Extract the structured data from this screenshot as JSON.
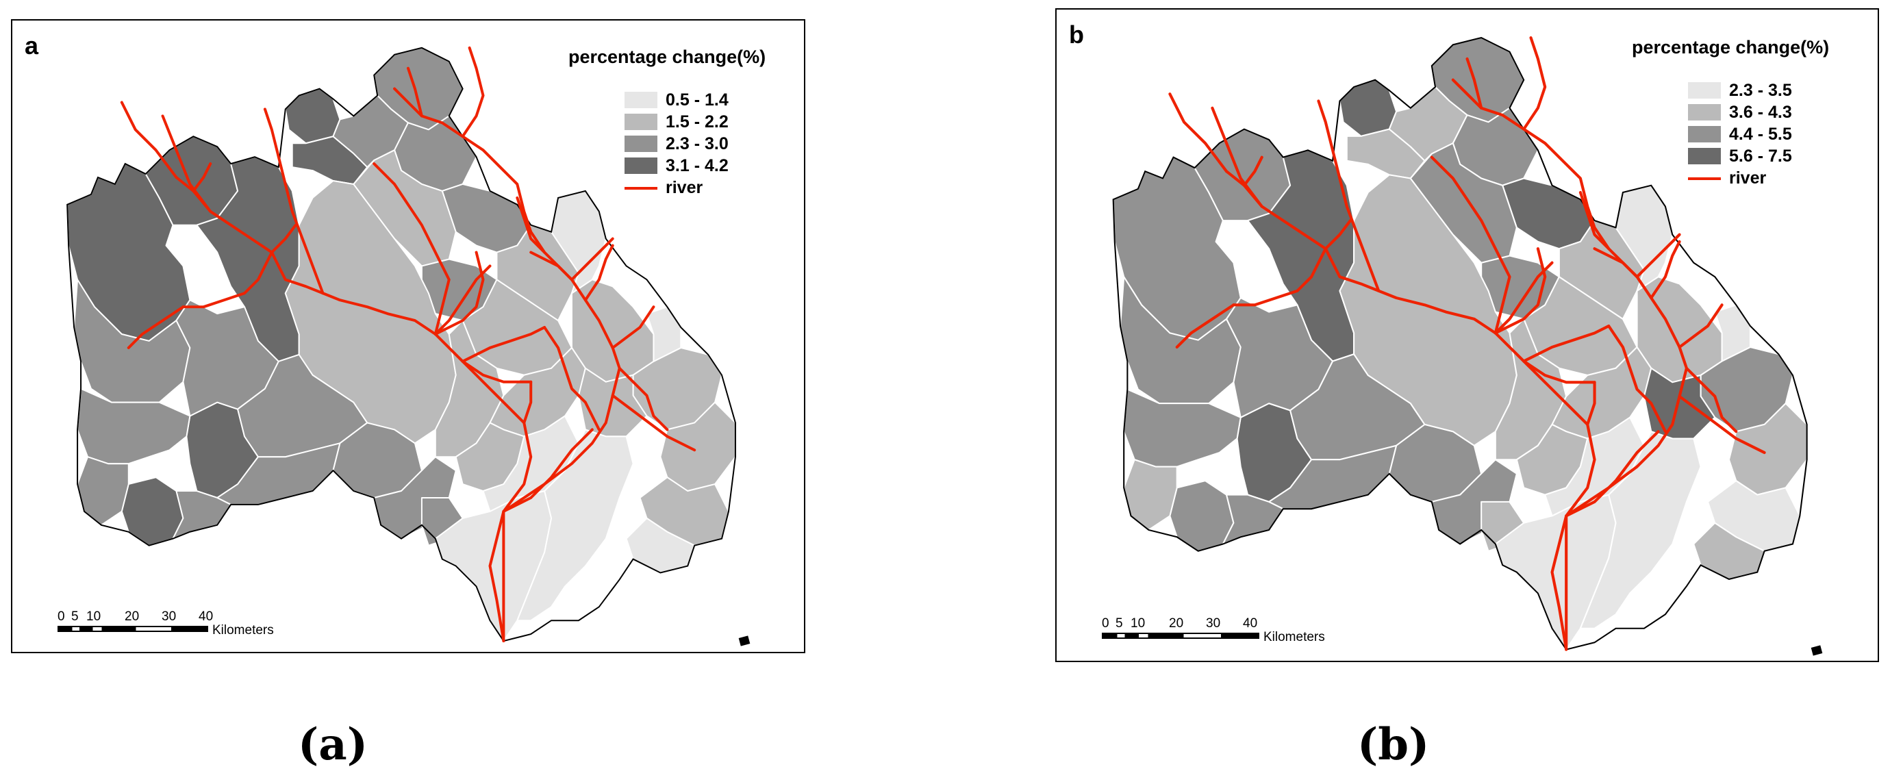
{
  "panels": [
    {
      "id": "a",
      "letter": "a",
      "legend_title": "percentage change(%)",
      "classes": [
        {
          "label": "0.5 - 1.4",
          "color": "#e6e6e6"
        },
        {
          "label": "1.5 - 2.2",
          "color": "#bababa"
        },
        {
          "label": "2.3 - 3.0",
          "color": "#929292"
        },
        {
          "label": "3.1 - 4.2",
          "color": "#6a6a6a"
        }
      ],
      "river_label": "river",
      "river_color": "#ee2200",
      "scale_ticks": [
        "0",
        "5",
        "10",
        "20",
        "30",
        "40"
      ],
      "scale_unit": "Kilometers"
    },
    {
      "id": "b",
      "letter": "b",
      "legend_title": "percentage change(%)",
      "classes": [
        {
          "label": "2.3 - 3.5",
          "color": "#e6e6e6"
        },
        {
          "label": "3.6 - 4.3",
          "color": "#bababa"
        },
        {
          "label": "4.4 - 5.5",
          "color": "#929292"
        },
        {
          "label": "5.6 - 7.5",
          "color": "#6a6a6a"
        }
      ],
      "river_label": "river",
      "river_color": "#ee2200",
      "scale_ticks": [
        "0",
        "5",
        "10",
        "20",
        "30",
        "40"
      ],
      "scale_unit": "Kilometers"
    }
  ],
  "captions": {
    "a": "(a)",
    "b": "(b)"
  }
}
